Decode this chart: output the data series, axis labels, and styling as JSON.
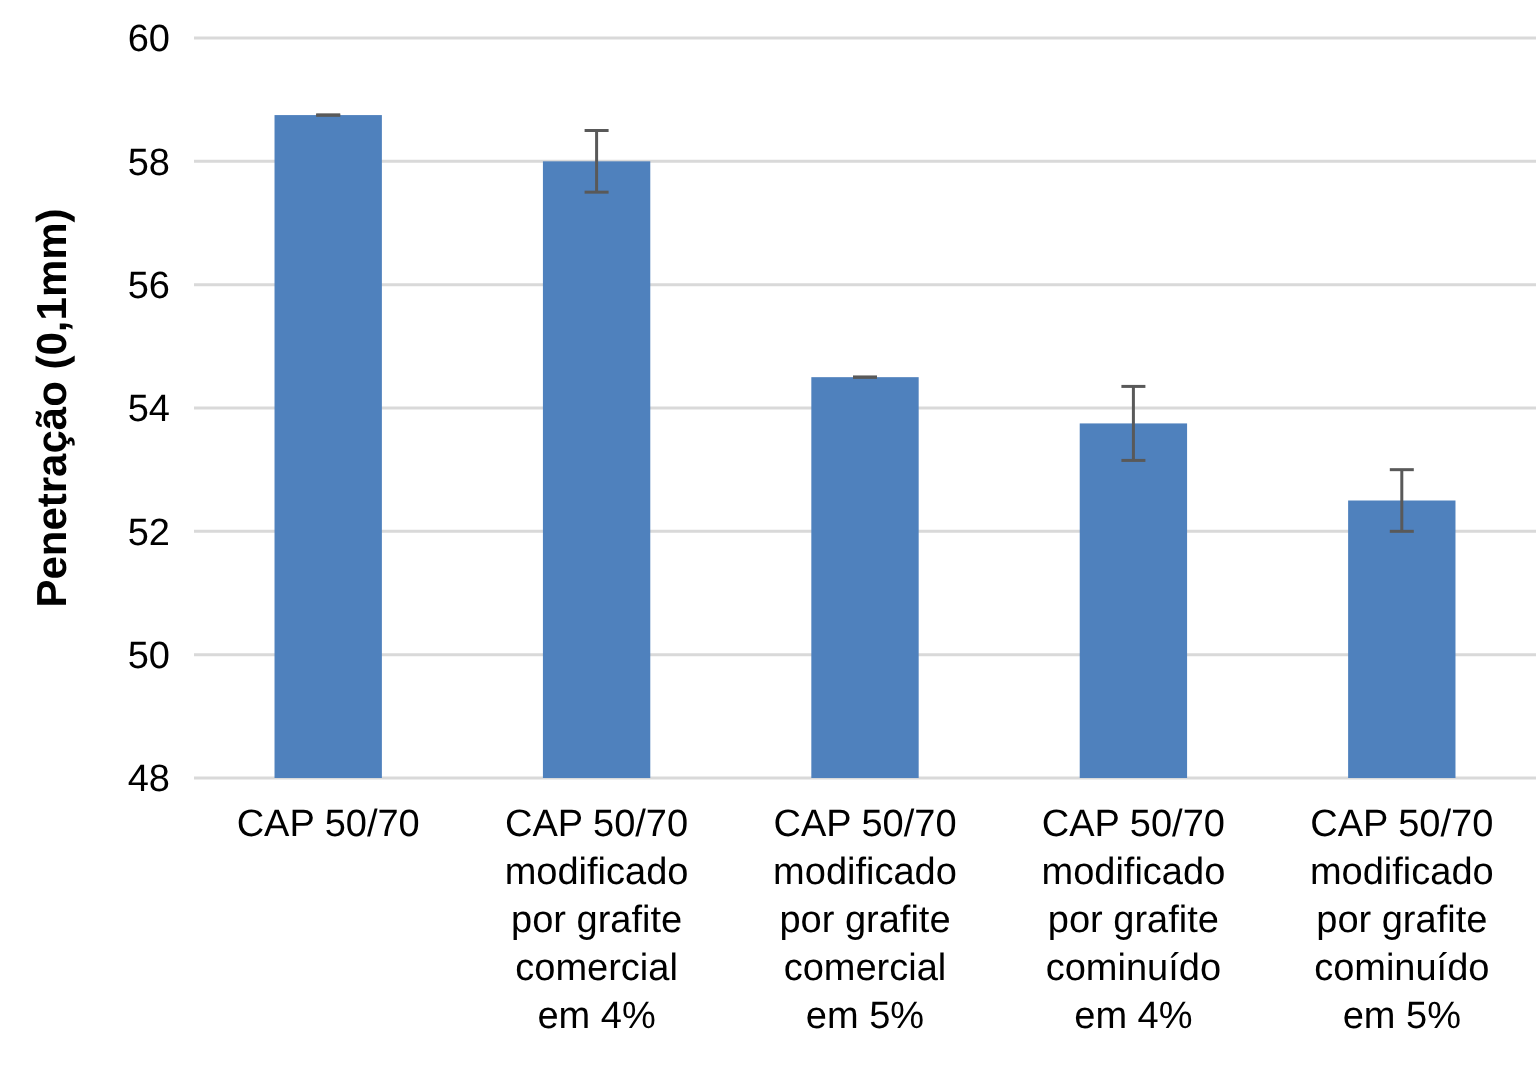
{
  "chart_data": {
    "type": "bar",
    "ylabel": "Penetração (0,1mm)",
    "categories": [
      "CAP 50/70",
      "CAP 50/70\nmodificado\npor grafite\ncomercial\nem 4%",
      "CAP 50/70\nmodificado\npor grafite\ncomercial\nem 5%",
      "CAP 50/70\nmodificado\npor grafite\ncominuído\nem 4%",
      "CAP 50/70\nmodificado\npor grafite\ncominuído\nem 5%"
    ],
    "values": [
      58.75,
      58.0,
      54.5,
      53.75,
      52.5
    ],
    "errors": [
      0,
      0.5,
      0,
      0.6,
      0.5
    ],
    "color": "#4f81bd",
    "ylim": [
      48,
      60
    ],
    "yticks": [
      48,
      50,
      52,
      54,
      56,
      58,
      60
    ],
    "grid": "y"
  }
}
